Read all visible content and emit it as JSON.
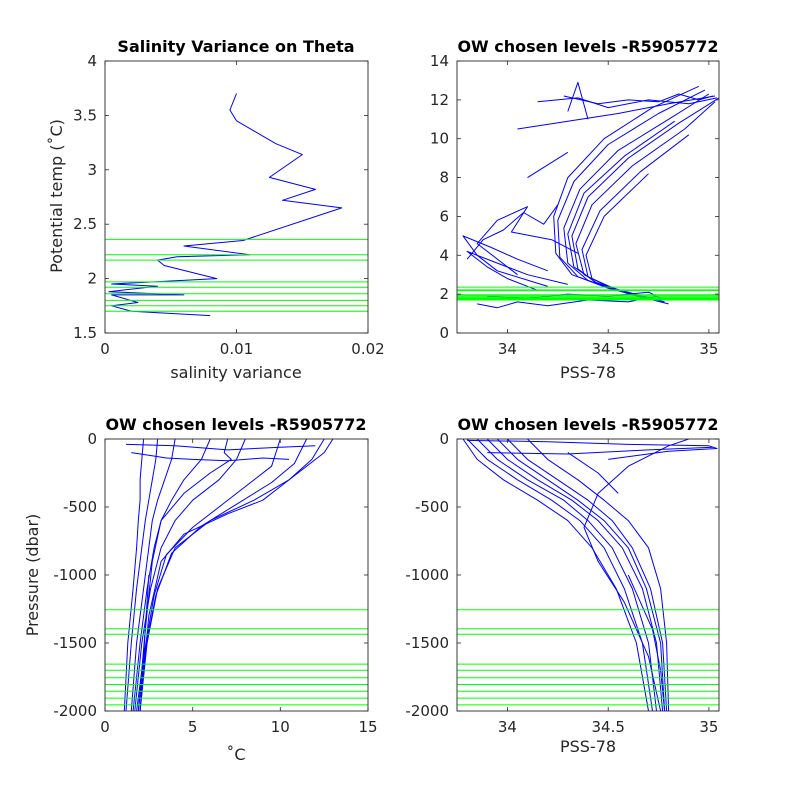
{
  "colors": {
    "profiles": "#0000ff",
    "levels": "#00ff00",
    "axes": "#262626"
  },
  "chart_data": [
    {
      "id": "tl",
      "type": "line",
      "title": "Salinity Variance on Theta",
      "xlabel": "salinity variance",
      "ylabel": "Potential temp (˚C)",
      "xlim": [
        0,
        0.02
      ],
      "ylim": [
        1.5,
        4
      ],
      "xticks": [
        0,
        0.01,
        0.02
      ],
      "xtick_labels": [
        "0",
        "0.01",
        "0.02"
      ],
      "yticks": [
        1.5,
        2,
        2.5,
        3,
        3.5,
        4
      ],
      "ytick_labels": [
        "1.5",
        "2",
        "2.5",
        "3",
        "3.5",
        "4"
      ],
      "grid": false,
      "series": [
        {
          "x": [
            0.008,
            0.002,
            0.0005,
            0.0025,
            0.0005,
            0.006,
            0.0003,
            0.004,
            0.0005,
            0.0085,
            0.0045,
            0.004,
            0.0055,
            0.011,
            0.006,
            0.0105,
            0.018,
            0.0135,
            0.016,
            0.0125,
            0.015,
            0.013,
            0.01,
            0.0095,
            0.01
          ],
          "y": [
            1.66,
            1.7,
            1.75,
            1.78,
            1.85,
            1.85,
            1.88,
            1.93,
            1.95,
            2.0,
            2.12,
            2.17,
            2.2,
            2.22,
            2.3,
            2.35,
            2.65,
            2.72,
            2.82,
            2.93,
            3.14,
            3.24,
            3.45,
            3.55,
            3.7
          ]
        }
      ],
      "hlines": [
        1.7,
        1.75,
        1.8,
        1.86,
        1.92,
        1.97,
        2.17,
        2.22,
        2.36
      ]
    },
    {
      "id": "tr",
      "type": "line",
      "title": "OW chosen levels -R5905772",
      "xlabel": "PSS-78",
      "ylabel": "",
      "xlim": [
        33.75,
        35.05
      ],
      "ylim": [
        0,
        14
      ],
      "xticks": [
        34,
        34.5,
        35
      ],
      "xtick_labels": [
        "34",
        "34.5",
        "35"
      ],
      "yticks": [
        0,
        2,
        4,
        6,
        8,
        10,
        12,
        14
      ],
      "ytick_labels": [
        "0",
        "2",
        "4",
        "6",
        "8",
        "10",
        "12",
        "14"
      ],
      "grid": false,
      "series": [
        {
          "x": [
            34.7,
            34.6,
            34.45,
            34.35,
            34.32,
            34.4,
            34.6,
            34.85,
            35.05
          ],
          "y": [
            1.8,
            2.1,
            2.5,
            3.3,
            5.0,
            7.0,
            9.0,
            10.8,
            12.1
          ]
        },
        {
          "x": [
            34.75,
            34.62,
            34.5,
            34.38,
            34.34,
            34.42,
            34.62,
            34.88,
            35.03
          ],
          "y": [
            1.7,
            2.0,
            2.4,
            3.0,
            4.6,
            6.6,
            8.6,
            10.5,
            11.9
          ]
        },
        {
          "x": [
            34.68,
            34.55,
            34.4,
            34.3,
            34.28,
            34.36,
            34.55,
            34.8,
            35.0
          ],
          "y": [
            1.8,
            2.2,
            2.7,
            3.6,
            5.4,
            7.4,
            9.4,
            11.0,
            12.3
          ]
        },
        {
          "x": [
            34.78,
            34.66,
            34.52,
            34.4,
            34.37,
            34.46,
            34.66,
            34.9
          ],
          "y": [
            1.6,
            1.9,
            2.3,
            2.9,
            4.3,
            6.3,
            8.3,
            10.2
          ]
        },
        {
          "x": [
            34.65,
            34.5,
            34.35,
            34.26,
            34.25,
            34.33,
            34.5,
            34.75,
            34.98
          ],
          "y": [
            1.9,
            2.3,
            2.9,
            3.9,
            5.8,
            7.8,
            9.7,
            11.3,
            12.5
          ]
        },
        {
          "x": [
            34.72,
            34.58,
            34.44,
            34.33,
            34.3,
            34.38,
            34.58,
            34.83
          ],
          "y": [
            1.8,
            2.1,
            2.6,
            3.4,
            5.1,
            7.2,
            9.1,
            10.9
          ]
        },
        {
          "x": [
            34.8,
            34.68,
            34.55,
            34.42,
            34.39,
            34.48,
            34.7
          ],
          "y": [
            1.5,
            1.8,
            2.2,
            2.8,
            4.0,
            6.0,
            8.2
          ]
        },
        {
          "x": [
            34.62,
            34.48,
            34.32,
            34.24,
            34.23,
            34.3,
            34.48,
            34.72,
            34.95
          ],
          "y": [
            2.0,
            2.4,
            3.0,
            4.1,
            6.0,
            8.0,
            10.0,
            11.6,
            12.7
          ]
        },
        {
          "x": [
            34.15,
            34.0,
            33.9,
            33.8,
            33.95,
            34.1,
            34.3
          ],
          "y": [
            2.2,
            2.8,
            3.4,
            4.2,
            3.6,
            3.0,
            2.5
          ]
        },
        {
          "x": [
            34.2,
            33.95,
            33.85,
            33.78,
            33.92,
            34.05,
            34.2
          ],
          "y": [
            2.4,
            3.2,
            4.0,
            5.0,
            4.4,
            3.8,
            3.2
          ]
        },
        {
          "x": [
            34.05,
            33.85,
            33.95,
            34.1,
            34.02,
            34.22,
            34.35
          ],
          "y": [
            3.0,
            4.6,
            5.8,
            6.5,
            5.2,
            4.8,
            4.1
          ]
        },
        {
          "x": [
            33.8,
            33.88,
            33.98,
            34.08,
            34.18,
            34.25
          ],
          "y": [
            3.8,
            4.8,
            5.3,
            6.2,
            5.6,
            6.6
          ]
        },
        {
          "x": [
            34.28,
            34.45,
            34.6,
            34.75,
            34.85,
            34.95,
            35.02
          ],
          "y": [
            12.2,
            11.8,
            12.0,
            11.9,
            12.3,
            12.0,
            12.2
          ]
        },
        {
          "x": [
            34.15,
            34.35,
            34.5,
            34.7,
            34.9,
            35.04
          ],
          "y": [
            11.9,
            12.1,
            11.6,
            12.0,
            11.8,
            12.1
          ]
        },
        {
          "x": [
            34.05,
            34.3,
            34.55,
            34.8,
            35.03
          ],
          "y": [
            10.5,
            10.9,
            11.3,
            11.8,
            12.2
          ]
        },
        {
          "x": [
            34.3,
            34.35,
            34.4
          ],
          "y": [
            11.4,
            12.9,
            11.0
          ]
        },
        {
          "x": [
            34.1,
            34.3
          ],
          "y": [
            8.0,
            9.3
          ]
        },
        {
          "x": [
            33.85,
            33.95,
            34.05,
            34.2,
            34.4,
            34.6,
            34.74
          ],
          "y": [
            1.5,
            1.3,
            1.6,
            1.4,
            1.7,
            1.6,
            1.9
          ]
        },
        {
          "x": [
            33.9,
            34.1,
            34.3,
            34.5,
            34.7,
            34.76
          ],
          "y": [
            1.9,
            1.8,
            2.0,
            1.9,
            2.1,
            1.8
          ]
        }
      ],
      "hlines": [
        1.7,
        1.75,
        1.8,
        1.86,
        1.92,
        1.97,
        2.17,
        2.22,
        2.36
      ]
    },
    {
      "id": "bl",
      "type": "line",
      "title": "OW chosen levels -R5905772",
      "xlabel": "˚C",
      "ylabel": "Pressure (dbar)",
      "xlim": [
        0,
        15
      ],
      "ylim": [
        -2000,
        0
      ],
      "xticks": [
        0,
        5,
        10,
        15
      ],
      "xtick_labels": [
        "0",
        "5",
        "10",
        "15"
      ],
      "yticks": [
        -2000,
        -1500,
        -1000,
        -500,
        0
      ],
      "ytick_labels": [
        "-2000",
        "-1500",
        "-1000",
        "-500",
        "0"
      ],
      "grid": false,
      "series": [
        {
          "x": [
            12.5,
            11.8,
            10.5,
            8.5,
            6.0,
            4.0,
            3.0,
            2.4,
            2.0
          ],
          "y": [
            0,
            -150,
            -300,
            -450,
            -600,
            -800,
            -1100,
            -1500,
            -2000
          ]
        },
        {
          "x": [
            11.5,
            10.8,
            9.5,
            7.5,
            5.5,
            3.8,
            2.9,
            2.3,
            1.9
          ],
          "y": [
            0,
            -180,
            -320,
            -480,
            -640,
            -840,
            -1150,
            -1550,
            -2000
          ]
        },
        {
          "x": [
            10.0,
            9.5,
            8.0,
            6.5,
            5.0,
            3.5,
            2.8,
            2.2,
            1.8
          ],
          "y": [
            0,
            -200,
            -350,
            -500,
            -650,
            -850,
            -1150,
            -1600,
            -2000
          ]
        },
        {
          "x": [
            8.0,
            7.5,
            6.5,
            5.0,
            4.0,
            3.2,
            2.6,
            2.1,
            1.7
          ],
          "y": [
            0,
            -150,
            -300,
            -450,
            -600,
            -800,
            -1100,
            -1500,
            -2000
          ]
        },
        {
          "x": [
            6.0,
            5.5,
            4.5,
            3.8,
            3.2,
            2.8,
            2.4,
            2.0,
            1.6
          ],
          "y": [
            0,
            -150,
            -300,
            -450,
            -600,
            -800,
            -1100,
            -1500,
            -2000
          ]
        },
        {
          "x": [
            4.0,
            3.8,
            3.4,
            3.0,
            2.7,
            2.5,
            2.2,
            1.8,
            1.5
          ],
          "y": [
            0,
            -150,
            -300,
            -450,
            -600,
            -800,
            -1100,
            -1500,
            -2000
          ]
        },
        {
          "x": [
            3.0,
            2.9,
            2.7,
            2.5,
            2.3,
            2.1,
            1.8,
            1.5,
            1.2
          ],
          "y": [
            0,
            -150,
            -300,
            -450,
            -600,
            -800,
            -1100,
            -1500,
            -2000
          ]
        },
        {
          "x": [
            2.2,
            2.1,
            2.0,
            2.0,
            1.9,
            1.8,
            1.6,
            1.3,
            1.1
          ],
          "y": [
            0,
            -150,
            -300,
            -450,
            -600,
            -800,
            -1100,
            -1500,
            -2000
          ]
        },
        {
          "x": [
            13.0,
            12.5,
            11.0,
            10.0,
            9.0,
            7.0,
            4.5,
            3.2,
            2.5,
            2.0
          ],
          "y": [
            0,
            -100,
            -250,
            -350,
            -450,
            -550,
            -700,
            -900,
            -1300,
            -2000
          ]
        },
        {
          "x": [
            7.0,
            6.8,
            7.2,
            6.0,
            4.5,
            3.2,
            2.7,
            2.3,
            1.9
          ],
          "y": [
            0,
            -100,
            -150,
            -250,
            -400,
            -600,
            -900,
            -1400,
            -2000
          ]
        },
        {
          "x": [
            1.5,
            2.5,
            3.5,
            5.0,
            7.0,
            9.0,
            10.5
          ],
          "y": [
            -100,
            -120,
            -140,
            -150,
            -160,
            -140,
            -150
          ]
        },
        {
          "x": [
            1.2,
            4.0,
            7.0,
            10.0,
            12.0
          ],
          "y": [
            -40,
            -50,
            -80,
            -60,
            -50
          ]
        },
        {
          "x": [
            2.5,
            2.4,
            2.3,
            2.2,
            2.1,
            2.0
          ],
          "y": [
            -1000,
            -1200,
            -1400,
            -1600,
            -1800,
            -2000
          ]
        }
      ],
      "hlines": [
        -1255,
        -1395,
        -1435,
        -1655,
        -1700,
        -1755,
        -1805,
        -1855,
        -1905,
        -1955
      ]
    },
    {
      "id": "br",
      "type": "line",
      "title": "OW chosen levels -R5905772",
      "xlabel": "PSS-78",
      "ylabel": "",
      "xlim": [
        33.75,
        35.05
      ],
      "ylim": [
        -2000,
        0
      ],
      "xticks": [
        34,
        34.5,
        35
      ],
      "xtick_labels": [
        "34",
        "34.5",
        "35"
      ],
      "yticks": [
        -2000,
        -1500,
        -1000,
        -500,
        0
      ],
      "ytick_labels": [
        "-2000",
        "-1500",
        "-1000",
        "-500",
        "0"
      ],
      "grid": false,
      "series": [
        {
          "x": [
            33.85,
            33.95,
            34.1,
            34.28,
            34.4,
            34.52,
            34.62,
            34.7,
            34.74
          ],
          "y": [
            0,
            -150,
            -300,
            -450,
            -600,
            -800,
            -1100,
            -1500,
            -2000
          ]
        },
        {
          "x": [
            33.9,
            34.0,
            34.15,
            34.32,
            34.45,
            34.57,
            34.67,
            34.74,
            34.77
          ],
          "y": [
            0,
            -150,
            -300,
            -450,
            -600,
            -800,
            -1100,
            -1500,
            -2000
          ]
        },
        {
          "x": [
            33.8,
            33.9,
            34.05,
            34.22,
            34.36,
            34.48,
            34.58,
            34.67,
            34.72
          ],
          "y": [
            0,
            -150,
            -300,
            -450,
            -600,
            -800,
            -1100,
            -1500,
            -2000
          ]
        },
        {
          "x": [
            34.0,
            34.1,
            34.25,
            34.4,
            34.52,
            34.62,
            34.71,
            34.77,
            34.79
          ],
          "y": [
            0,
            -150,
            -300,
            -450,
            -600,
            -800,
            -1100,
            -1500,
            -2000
          ]
        },
        {
          "x": [
            33.95,
            34.05,
            34.2,
            34.35,
            34.48,
            34.6,
            34.69,
            34.76,
            34.78
          ],
          "y": [
            0,
            -150,
            -300,
            -450,
            -600,
            -800,
            -1100,
            -1500,
            -2000
          ]
        },
        {
          "x": [
            33.78,
            33.85,
            33.98,
            34.15,
            34.3,
            34.42,
            34.54,
            34.64,
            34.7
          ],
          "y": [
            0,
            -150,
            -300,
            -450,
            -600,
            -800,
            -1100,
            -1500,
            -2000
          ]
        },
        {
          "x": [
            34.1,
            34.2,
            34.35,
            34.48,
            34.6,
            34.7,
            34.76,
            34.79,
            34.8
          ],
          "y": [
            0,
            -150,
            -300,
            -450,
            -600,
            -800,
            -1100,
            -1500,
            -2000
          ]
        },
        {
          "x": [
            34.9,
            34.8,
            34.6,
            34.45,
            34.38,
            34.45,
            34.58,
            34.7,
            34.76
          ],
          "y": [
            0,
            -50,
            -200,
            -400,
            -650,
            -900,
            -1200,
            -1600,
            -2000
          ]
        },
        {
          "x": [
            33.8,
            34.2,
            34.6,
            35.0,
            35.04,
            34.8,
            34.5
          ],
          "y": [
            -10,
            -20,
            -40,
            -50,
            -70,
            -90,
            -150
          ]
        },
        {
          "x": [
            33.9,
            34.3,
            34.7,
            35.02
          ],
          "y": [
            -100,
            -110,
            -80,
            -60
          ]
        },
        {
          "x": [
            34.3,
            34.45,
            34.55
          ],
          "y": [
            -100,
            -250,
            -400
          ]
        },
        {
          "x": [
            34.6,
            34.66,
            34.72,
            34.76,
            34.78
          ],
          "y": [
            -1000,
            -1200,
            -1400,
            -1700,
            -2000
          ]
        }
      ],
      "hlines": [
        -1255,
        -1395,
        -1435,
        -1655,
        -1700,
        -1755,
        -1805,
        -1855,
        -1905,
        -1955
      ]
    }
  ]
}
